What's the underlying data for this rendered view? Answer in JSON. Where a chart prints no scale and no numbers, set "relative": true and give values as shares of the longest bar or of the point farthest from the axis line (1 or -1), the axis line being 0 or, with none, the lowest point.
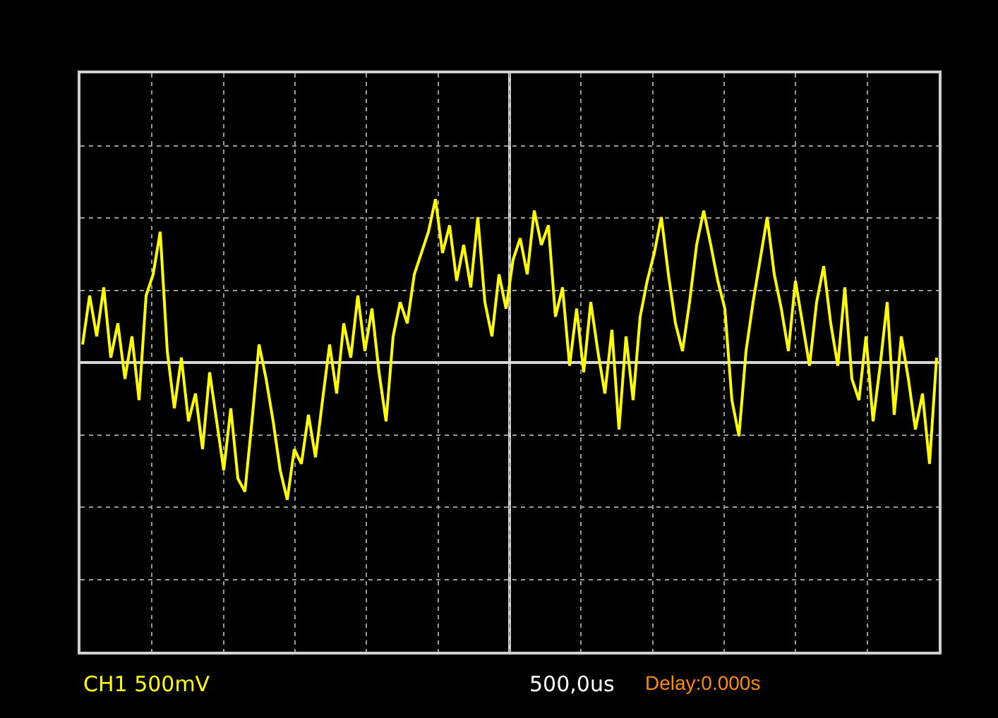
{
  "chart_data": {
    "type": "line",
    "relative": true,
    "grid": true,
    "marker": "none",
    "line_style": "solid",
    "categories": [
      null,
      null,
      null,
      null,
      null,
      null,
      null,
      null,
      null,
      null,
      null,
      null,
      null,
      null,
      null,
      null,
      null,
      null,
      null,
      null,
      null,
      null,
      null,
      null,
      null,
      null,
      null,
      null,
      null,
      null,
      null,
      null,
      null,
      null,
      null,
      null,
      null,
      null,
      null,
      null,
      null,
      null,
      null,
      null,
      null,
      null,
      null,
      null,
      null,
      null,
      null,
      null,
      null,
      null,
      null,
      null,
      null,
      null,
      null,
      null,
      null,
      null,
      null,
      null,
      null,
      null,
      null,
      null,
      null,
      null,
      null,
      null,
      null,
      null,
      null,
      null,
      null,
      null,
      null,
      null,
      null,
      null,
      null,
      null,
      null,
      null,
      null,
      null,
      null,
      null,
      null,
      null,
      null,
      null,
      null,
      null,
      null,
      null,
      null,
      null,
      null,
      null,
      null,
      null,
      null,
      null,
      null,
      null,
      null,
      null,
      null,
      null,
      null,
      null,
      null,
      null,
      null,
      null,
      null,
      null,
      null,
      null
    ],
    "series": [
      {
        "color": "#ffff00",
        "values": [
          0.11,
          0.41,
          0.16,
          0.46,
          0.03,
          0.24,
          -0.1,
          0.16,
          -0.23,
          0.41,
          0.54,
          0.8,
          0.07,
          -0.28,
          0.03,
          -0.36,
          -0.19,
          -0.53,
          -0.06,
          -0.36,
          -0.66,
          -0.28,
          -0.71,
          -0.79,
          -0.36,
          0.11,
          -0.1,
          -0.36,
          -0.66,
          -0.84,
          -0.53,
          -0.62,
          -0.32,
          -0.58,
          -0.23,
          0.11,
          -0.19,
          0.24,
          0.03,
          0.41,
          0.07,
          0.33,
          -0.06,
          -0.36,
          0.16,
          0.37,
          0.24,
          0.54,
          0.67,
          0.8,
          1.0,
          0.67,
          0.84,
          0.5,
          0.72,
          0.46,
          0.89,
          0.37,
          0.16,
          0.54,
          0.33,
          0.63,
          0.76,
          0.54,
          0.93,
          0.72,
          0.84,
          0.28,
          0.46,
          -0.02,
          0.33,
          -0.06,
          0.37,
          0.07,
          -0.19,
          0.2,
          -0.41,
          0.16,
          -0.23,
          0.28,
          0.5,
          0.67,
          0.89,
          0.54,
          0.24,
          0.07,
          0.37,
          0.72,
          0.93,
          0.72,
          0.5,
          0.33,
          -0.23,
          -0.45,
          0.07,
          0.37,
          0.63,
          0.89,
          0.54,
          0.33,
          0.07,
          0.5,
          0.24,
          -0.02,
          0.37,
          0.59,
          0.24,
          -0.02,
          0.46,
          -0.1,
          -0.23,
          0.16,
          -0.36,
          -0.02,
          0.37,
          -0.32,
          0.16,
          -0.1,
          -0.41,
          -0.19,
          -0.62,
          0.03
        ]
      }
    ],
    "annotations": [
      "CH1 500mV",
      "500,0us",
      "Delay:0.000s"
    ]
  }
}
